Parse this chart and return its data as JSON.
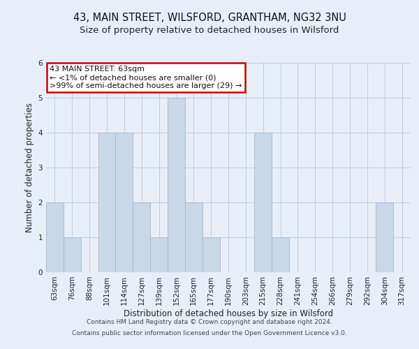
{
  "title": "43, MAIN STREET, WILSFORD, GRANTHAM, NG32 3NU",
  "subtitle": "Size of property relative to detached houses in Wilsford",
  "xlabel": "Distribution of detached houses by size in Wilsford",
  "ylabel": "Number of detached properties",
  "categories": [
    "63sqm",
    "76sqm",
    "88sqm",
    "101sqm",
    "114sqm",
    "127sqm",
    "139sqm",
    "152sqm",
    "165sqm",
    "177sqm",
    "190sqm",
    "203sqm",
    "215sqm",
    "228sqm",
    "241sqm",
    "254sqm",
    "266sqm",
    "279sqm",
    "292sqm",
    "304sqm",
    "317sqm"
  ],
  "values": [
    2,
    1,
    0,
    4,
    4,
    2,
    1,
    5,
    2,
    1,
    0,
    0,
    4,
    1,
    0,
    0,
    0,
    0,
    0,
    2,
    0
  ],
  "bar_color": "#c8d8e8",
  "bar_edge_color": "#a0b8d0",
  "annotation_box_text": "43 MAIN STREET: 63sqm\n← <1% of detached houses are smaller (0)\n>99% of semi-detached houses are larger (29) →",
  "annotation_box_facecolor": "#ffffff",
  "annotation_box_edgecolor": "#cc0000",
  "ylim": [
    0,
    6
  ],
  "yticks": [
    0,
    1,
    2,
    3,
    4,
    5,
    6
  ],
  "grid_color": "#c0ccd8",
  "background_color": "#e8eef8",
  "footer_line1": "Contains HM Land Registry data © Crown copyright and database right 2024.",
  "footer_line2": "Contains public sector information licensed under the Open Government Licence v3.0.",
  "title_fontsize": 10.5,
  "subtitle_fontsize": 9.5,
  "axis_label_fontsize": 8.5,
  "tick_fontsize": 7.5,
  "footer_fontsize": 6.5,
  "annotation_fontsize": 8
}
